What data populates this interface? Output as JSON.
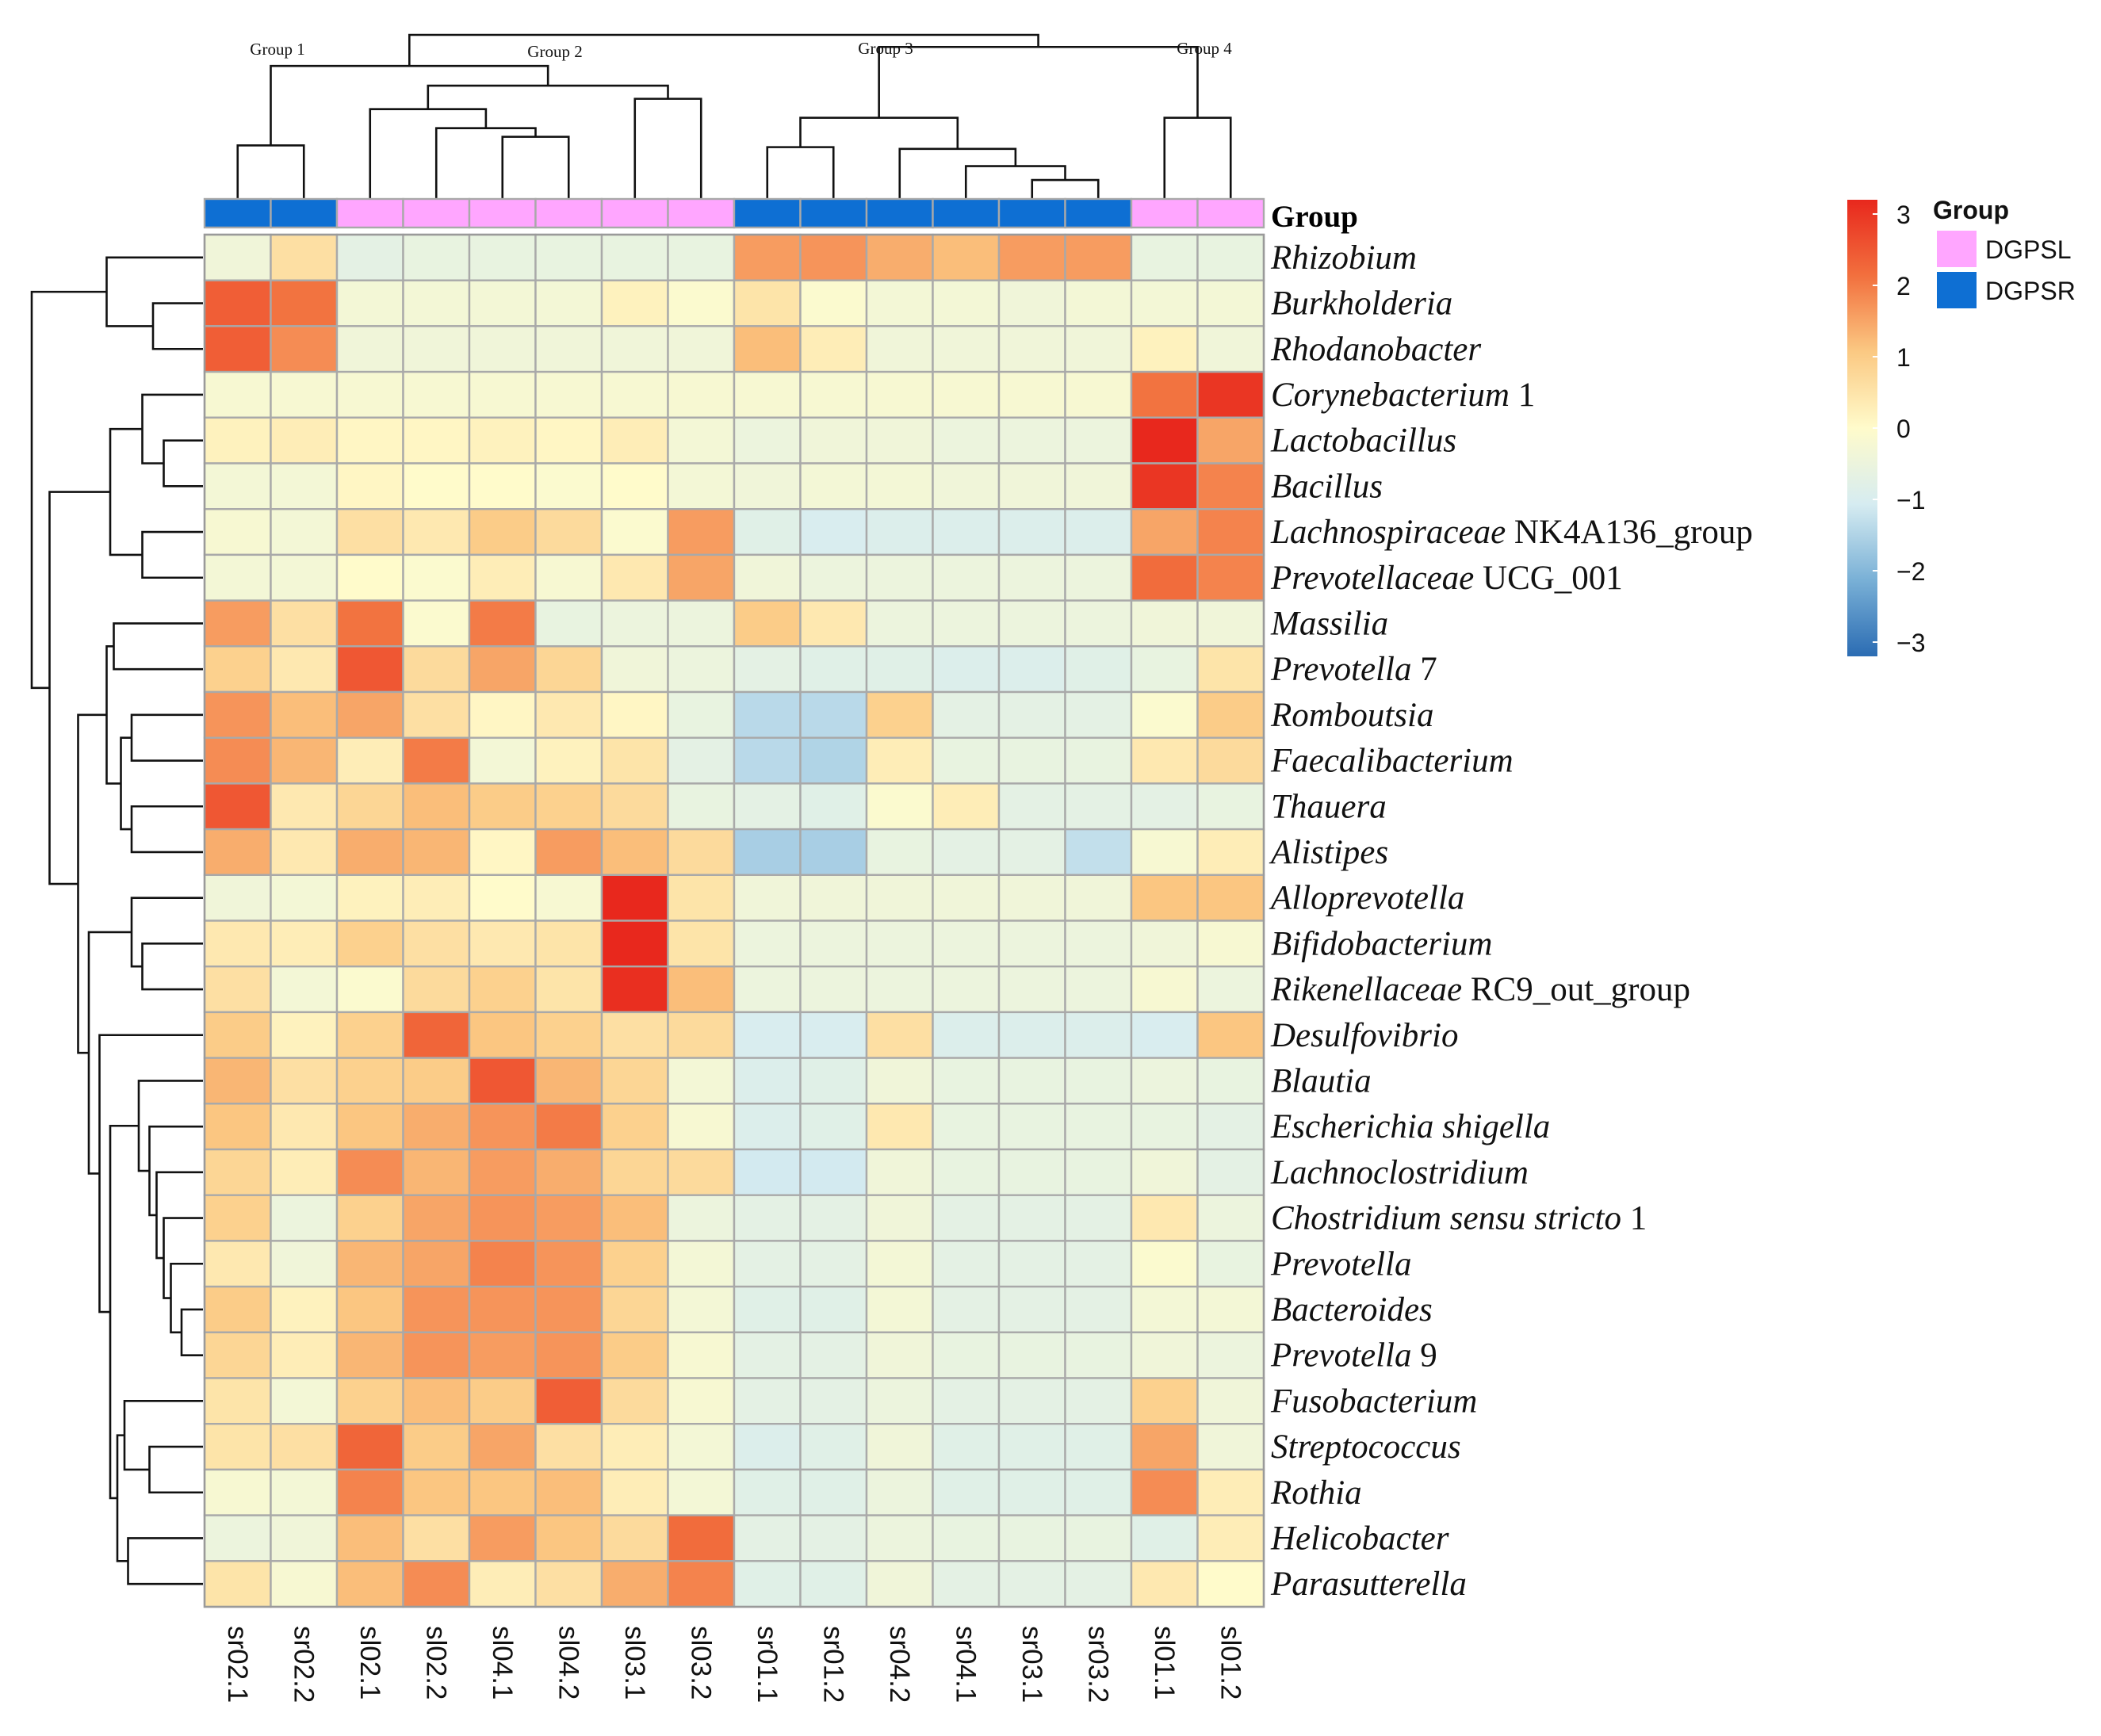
{
  "chart_data": {
    "type": "heatmap",
    "title": "",
    "annotation_title": "Group",
    "columns": [
      "sr02.1",
      "sr02.2",
      "sl02.1",
      "sl02.2",
      "sl04.1",
      "sl04.2",
      "sl03.1",
      "sl03.2",
      "sr01.1",
      "sr01.2",
      "sr04.2",
      "sr04.1",
      "sr03.1",
      "sr03.2",
      "sl01.1",
      "sl01.2"
    ],
    "column_groups": [
      "DGPSR",
      "DGPSR",
      "DGPSL",
      "DGPSL",
      "DGPSL",
      "DGPSL",
      "DGPSL",
      "DGPSL",
      "DGPSR",
      "DGPSR",
      "DGPSR",
      "DGPSR",
      "DGPSR",
      "DGPSR",
      "DGPSL",
      "DGPSL"
    ],
    "cluster_labels": [
      "Group 1",
      "Group 2",
      "Group 3",
      "Group 4"
    ],
    "rows": [
      {
        "genus": "Rhizobium",
        "suffix": ""
      },
      {
        "genus": "Burkholderia",
        "suffix": ""
      },
      {
        "genus": "Rhodanobacter",
        "suffix": ""
      },
      {
        "genus": "Corynebacterium",
        "suffix": " 1"
      },
      {
        "genus": "Lactobacillus",
        "suffix": ""
      },
      {
        "genus": "Bacillus",
        "suffix": ""
      },
      {
        "genus": "Lachnospiraceae",
        "suffix": " NK4A136_group"
      },
      {
        "genus": "Prevotellaceae",
        "suffix": " UCG_001"
      },
      {
        "genus": "Massilia",
        "suffix": ""
      },
      {
        "genus": "Prevotella",
        "suffix": " 7"
      },
      {
        "genus": "Romboutsia",
        "suffix": ""
      },
      {
        "genus": "Faecalibacterium",
        "suffix": ""
      },
      {
        "genus": "Thauera",
        "suffix": ""
      },
      {
        "genus": "Alistipes",
        "suffix": ""
      },
      {
        "genus": "Alloprevotella",
        "suffix": ""
      },
      {
        "genus": "Bifidobacterium",
        "suffix": ""
      },
      {
        "genus": "Rikenellaceae",
        "suffix": " RC9_out_group"
      },
      {
        "genus": "Desulfovibrio",
        "suffix": ""
      },
      {
        "genus": "Blautia",
        "suffix": ""
      },
      {
        "genus": "Escherichia shigella",
        "suffix": ""
      },
      {
        "genus": "Lachnoclostridium",
        "suffix": ""
      },
      {
        "genus": "Chostridium sensu stricto",
        "suffix": " 1"
      },
      {
        "genus": "Prevotella",
        "suffix": ""
      },
      {
        "genus": "Bacteroides",
        "suffix": ""
      },
      {
        "genus": "Prevotella",
        "suffix": " 9"
      },
      {
        "genus": "Fusobacterium",
        "suffix": ""
      },
      {
        "genus": "Streptococcus",
        "suffix": ""
      },
      {
        "genus": "Rothia",
        "suffix": ""
      },
      {
        "genus": "Helicobacter",
        "suffix": ""
      },
      {
        "genus": "Parasutterella",
        "suffix": ""
      }
    ],
    "values": [
      [
        -0.4,
        0.6,
        -0.7,
        -0.6,
        -0.6,
        -0.6,
        -0.6,
        -0.6,
        1.6,
        1.7,
        1.4,
        1.2,
        1.6,
        1.6,
        -0.6,
        -0.6
      ],
      [
        2.4,
        2.1,
        -0.3,
        -0.3,
        -0.3,
        -0.3,
        0.2,
        -0.1,
        0.5,
        -0.1,
        -0.3,
        -0.3,
        -0.4,
        -0.3,
        -0.3,
        -0.3
      ],
      [
        2.4,
        1.8,
        -0.4,
        -0.4,
        -0.4,
        -0.4,
        -0.4,
        -0.4,
        1.2,
        0.3,
        -0.4,
        -0.4,
        -0.4,
        -0.4,
        0.2,
        -0.4
      ],
      [
        -0.2,
        -0.2,
        -0.2,
        -0.2,
        -0.2,
        -0.2,
        -0.2,
        -0.2,
        -0.2,
        -0.2,
        -0.2,
        -0.2,
        -0.2,
        -0.2,
        2.1,
        3.0
      ],
      [
        0.2,
        0.3,
        0.1,
        0.1,
        0.2,
        0.1,
        0.3,
        -0.3,
        -0.5,
        -0.4,
        -0.4,
        -0.5,
        -0.5,
        -0.5,
        3.2,
        1.5
      ],
      [
        -0.3,
        -0.3,
        0.1,
        0.0,
        0.0,
        -0.1,
        0.0,
        -0.3,
        -0.4,
        -0.3,
        -0.3,
        -0.4,
        -0.4,
        -0.4,
        3.0,
        1.9
      ],
      [
        -0.2,
        -0.3,
        0.6,
        0.4,
        1.0,
        0.7,
        -0.1,
        1.6,
        -0.8,
        -1.0,
        -0.9,
        -0.9,
        -0.9,
        -0.9,
        1.5,
        1.9
      ],
      [
        -0.3,
        -0.3,
        0.0,
        -0.1,
        0.3,
        -0.2,
        0.4,
        1.5,
        -0.4,
        -0.5,
        -0.5,
        -0.5,
        -0.5,
        -0.5,
        2.2,
        1.9
      ],
      [
        1.6,
        0.6,
        2.1,
        -0.1,
        2.0,
        -0.6,
        -0.5,
        -0.5,
        1.0,
        0.4,
        -0.5,
        -0.5,
        -0.5,
        -0.5,
        -0.4,
        -0.4
      ],
      [
        0.9,
        0.4,
        2.5,
        0.7,
        1.5,
        0.8,
        -0.4,
        -0.5,
        -0.7,
        -0.8,
        -0.8,
        -0.9,
        -0.9,
        -0.8,
        -0.6,
        0.5
      ],
      [
        1.7,
        1.2,
        1.5,
        0.6,
        0.1,
        0.4,
        0.1,
        -0.6,
        -1.4,
        -1.4,
        0.9,
        -0.7,
        -0.7,
        -0.7,
        -0.1,
        1.0
      ],
      [
        1.8,
        1.3,
        0.3,
        2.0,
        -0.3,
        0.2,
        0.5,
        -0.7,
        -1.4,
        -1.5,
        0.3,
        -0.6,
        -0.6,
        -0.6,
        0.4,
        0.7
      ],
      [
        2.5,
        0.4,
        0.8,
        1.2,
        1.0,
        0.9,
        0.7,
        -0.6,
        -0.7,
        -0.8,
        -0.1,
        0.3,
        -0.7,
        -0.7,
        -0.7,
        -0.6
      ],
      [
        1.4,
        0.4,
        1.4,
        1.3,
        0.1,
        1.6,
        1.2,
        0.7,
        -1.6,
        -1.6,
        -0.6,
        -0.7,
        -0.7,
        -1.3,
        -0.2,
        0.3
      ],
      [
        -0.4,
        -0.3,
        0.2,
        0.3,
        0.0,
        -0.2,
        3.3,
        0.5,
        -0.4,
        -0.4,
        -0.4,
        -0.4,
        -0.4,
        -0.4,
        1.1,
        1.1
      ],
      [
        0.4,
        0.3,
        0.9,
        0.6,
        0.4,
        0.5,
        3.3,
        0.5,
        -0.5,
        -0.5,
        -0.5,
        -0.5,
        -0.5,
        -0.5,
        -0.4,
        -0.2
      ],
      [
        0.6,
        -0.3,
        -0.1,
        0.7,
        0.9,
        0.5,
        3.1,
        1.2,
        -0.5,
        -0.5,
        -0.5,
        -0.5,
        -0.5,
        -0.5,
        -0.2,
        -0.5
      ],
      [
        1.0,
        0.2,
        0.9,
        2.3,
        1.1,
        0.9,
        0.6,
        0.7,
        -1.0,
        -1.0,
        0.6,
        -0.9,
        -0.9,
        -0.9,
        -1.0,
        1.1
      ],
      [
        1.3,
        0.6,
        0.9,
        1.0,
        2.5,
        1.3,
        0.8,
        -0.3,
        -0.9,
        -0.8,
        -0.4,
        -0.6,
        -0.6,
        -0.6,
        -0.5,
        -0.6
      ],
      [
        1.1,
        0.4,
        1.1,
        1.4,
        1.7,
        2.0,
        0.9,
        -0.2,
        -0.9,
        -0.8,
        0.4,
        -0.6,
        -0.6,
        -0.6,
        -0.6,
        -0.7
      ],
      [
        0.8,
        0.3,
        1.8,
        1.3,
        1.6,
        1.4,
        0.8,
        0.7,
        -1.1,
        -1.1,
        -0.4,
        -0.6,
        -0.6,
        -0.6,
        -0.4,
        -0.7
      ],
      [
        0.9,
        -0.5,
        0.9,
        1.5,
        1.7,
        1.6,
        1.2,
        -0.5,
        -0.7,
        -0.7,
        -0.4,
        -0.7,
        -0.7,
        -0.7,
        0.4,
        -0.5
      ],
      [
        0.4,
        -0.4,
        1.3,
        1.5,
        1.9,
        1.7,
        0.9,
        -0.3,
        -0.7,
        -0.7,
        -0.3,
        -0.7,
        -0.7,
        -0.7,
        -0.1,
        -0.6
      ],
      [
        1.0,
        0.2,
        1.1,
        1.7,
        1.7,
        1.7,
        0.8,
        -0.3,
        -0.8,
        -0.8,
        -0.3,
        -0.7,
        -0.7,
        -0.7,
        -0.3,
        -0.3
      ],
      [
        0.8,
        0.3,
        1.3,
        1.7,
        1.6,
        1.7,
        1.0,
        -0.2,
        -0.7,
        -0.7,
        -0.4,
        -0.6,
        -0.6,
        -0.6,
        -0.4,
        -0.5
      ],
      [
        0.5,
        -0.3,
        0.9,
        1.2,
        1.0,
        2.4,
        0.7,
        -0.2,
        -0.7,
        -0.7,
        -0.5,
        -0.7,
        -0.7,
        -0.7,
        0.9,
        -0.4
      ],
      [
        0.5,
        0.6,
        2.3,
        1.0,
        1.5,
        0.6,
        0.3,
        -0.3,
        -0.9,
        -0.8,
        -0.4,
        -0.8,
        -0.8,
        -0.8,
        1.5,
        -0.4
      ],
      [
        -0.2,
        -0.3,
        1.9,
        1.1,
        1.1,
        1.2,
        0.3,
        -0.3,
        -0.8,
        -0.8,
        -0.5,
        -0.8,
        -0.8,
        -0.8,
        1.8,
        0.3
      ],
      [
        -0.5,
        -0.4,
        1.2,
        0.6,
        1.6,
        1.1,
        0.7,
        2.2,
        -0.7,
        -0.7,
        -0.5,
        -0.6,
        -0.6,
        -0.6,
        -0.8,
        0.3
      ],
      [
        0.5,
        -0.2,
        1.2,
        1.8,
        0.3,
        0.6,
        1.4,
        1.9,
        -0.8,
        -0.8,
        -0.4,
        -0.7,
        -0.7,
        -0.7,
        0.4,
        0.0
      ]
    ],
    "col_dendrogram": [
      {
        "a": 0,
        "b": 1,
        "h": 1.55
      },
      {
        "a": 4,
        "b": 5,
        "h": 1.8
      },
      {
        "a": 3,
        "b": "n1",
        "h": 2.05
      },
      {
        "a": 2,
        "b": "n2",
        "h": 2.6
      },
      {
        "a": 6,
        "b": 7,
        "h": 2.9
      },
      {
        "a": "n3",
        "b": "n4",
        "h": 3.28
      },
      {
        "a": "n0",
        "b": "n5",
        "h": 3.85
      },
      {
        "a": 12,
        "b": 13,
        "h": 0.55
      },
      {
        "a": 11,
        "b": "n7",
        "h": 0.95
      },
      {
        "a": 10,
        "b": "n8",
        "h": 1.45
      },
      {
        "a": 8,
        "b": 9,
        "h": 1.5
      },
      {
        "a": "n10",
        "b": "n9",
        "h": 2.35
      },
      {
        "a": 14,
        "b": 15,
        "h": 2.35
      },
      {
        "a": "n11",
        "b": "n12",
        "h": 4.4
      },
      {
        "a": "n6",
        "b": "n13",
        "h": 4.75
      }
    ],
    "row_dendrogram": [
      {
        "a": 1,
        "b": 2,
        "h": 0.7
      },
      {
        "a": 0,
        "b": "n0",
        "h": 1.35
      },
      {
        "a": 4,
        "b": 5,
        "h": 0.55
      },
      {
        "a": 3,
        "b": "n2",
        "h": 0.85
      },
      {
        "a": 6,
        "b": 7,
        "h": 0.85
      },
      {
        "a": "n3",
        "b": "n4",
        "h": 1.3
      },
      {
        "a": 8,
        "b": 9,
        "h": 1.25
      },
      {
        "a": 10,
        "b": 11,
        "h": 1.0
      },
      {
        "a": 12,
        "b": 13,
        "h": 1.0
      },
      {
        "a": "n7",
        "b": "n8",
        "h": 1.15
      },
      {
        "a": "n6",
        "b": "n9",
        "h": 1.35
      },
      {
        "a": 15,
        "b": 16,
        "h": 0.85
      },
      {
        "a": 14,
        "b": "n11",
        "h": 1.0
      },
      {
        "a": 23,
        "b": 24,
        "h": 0.3
      },
      {
        "a": 22,
        "b": "n13",
        "h": 0.45
      },
      {
        "a": 21,
        "b": "n14",
        "h": 0.55
      },
      {
        "a": 20,
        "b": "n15",
        "h": 0.65
      },
      {
        "a": 19,
        "b": "n16",
        "h": 0.75
      },
      {
        "a": 18,
        "b": "n17",
        "h": 0.9
      },
      {
        "a": 26,
        "b": 27,
        "h": 0.75
      },
      {
        "a": 25,
        "b": "n19",
        "h": 1.1
      },
      {
        "a": 28,
        "b": 29,
        "h": 1.05
      },
      {
        "a": "n20",
        "b": "n21",
        "h": 1.2
      },
      {
        "a": "n18",
        "b": "n22",
        "h": 1.3
      },
      {
        "a": 17,
        "b": "n23",
        "h": 1.45
      },
      {
        "a": "n12",
        "b": "n24",
        "h": 1.6
      },
      {
        "a": "n10",
        "b": "n25",
        "h": 1.75
      },
      {
        "a": "n5",
        "b": "n26",
        "h": 2.15
      },
      {
        "a": "n1",
        "b": "n27",
        "h": 2.4
      }
    ],
    "color_scale": {
      "domain": [
        -3.2,
        3.2
      ],
      "ticks": [
        "3",
        "2",
        "1",
        "0",
        "−1",
        "−2",
        "−3"
      ],
      "tick_values": [
        3,
        2,
        1,
        0,
        -1,
        -2,
        -3
      ],
      "colors": [
        "#2b6cb3",
        "#79b0d6",
        "#d6ecf1",
        "#fffbcb",
        "#fbc983",
        "#f2703e",
        "#e8281d"
      ]
    },
    "legend": {
      "title": "Group",
      "items": [
        {
          "name": "DGPSL",
          "color": "#ffa6ff"
        },
        {
          "name": "DGPSR",
          "color": "#0e6fd3"
        }
      ]
    }
  }
}
